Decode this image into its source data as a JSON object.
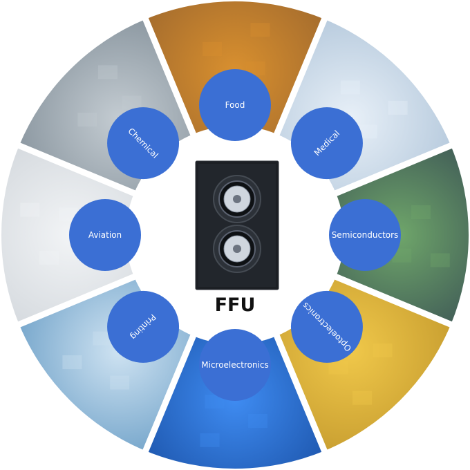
{
  "title": "FFU",
  "colors": {
    "label_blue": "#3b6fd4",
    "gap": "#ffffff",
    "unit_body": "#1c1f24"
  },
  "center_image": "fan-filter-unit",
  "segments": [
    {
      "label": "Food",
      "scene": "food-bottling-line",
      "bg": "#8a5a2c",
      "accent": "#d9902f"
    },
    {
      "label": "Medical",
      "scene": "lab-microscope",
      "bg": "#9fb8d0",
      "accent": "#e8f0f8"
    },
    {
      "label": "Semiconductors",
      "scene": "chip-robot-gripper",
      "bg": "#2b3a4e",
      "accent": "#6fa66a"
    },
    {
      "label": "Optoelectronics",
      "scene": "cleanroom-yellow-light",
      "bg": "#b58a24",
      "accent": "#f0c84a"
    },
    {
      "label": "Microelectronics",
      "scene": "circuit-board-chip",
      "bg": "#0f3f8f",
      "accent": "#3f8cf2"
    },
    {
      "label": "Printing",
      "scene": "printing-machinery",
      "bg": "#4a88b8",
      "accent": "#cfe3f2"
    },
    {
      "label": "Aviation",
      "scene": "aircraft-hangar",
      "bg": "#c7cdd3",
      "accent": "#f2f4f6"
    },
    {
      "label": "Chemical",
      "scene": "chemical-laboratory",
      "bg": "#6f7d88",
      "accent": "#c4ccd2"
    }
  ]
}
